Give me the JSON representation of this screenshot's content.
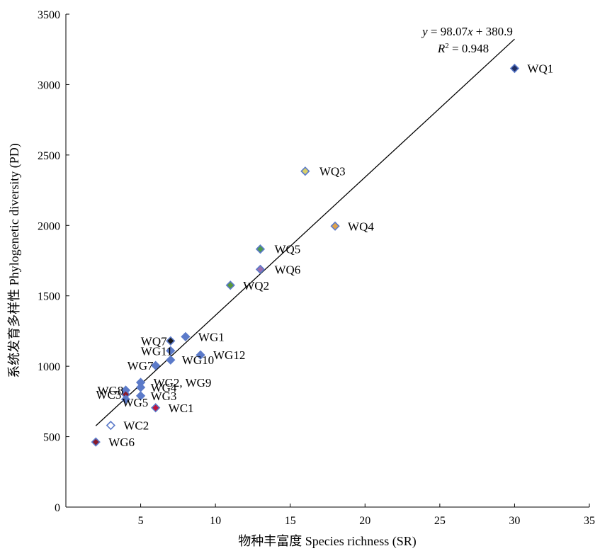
{
  "chart_data": {
    "type": "scatter",
    "xlabel": "物种丰富度 Species richness (SR)",
    "ylabel": "系统发育多样性 Phylogenetic diversity (PD)",
    "xlim": [
      0,
      35
    ],
    "ylim": [
      0,
      3500
    ],
    "xticks": [
      5,
      10,
      15,
      20,
      25,
      30,
      35
    ],
    "yticks": [
      0,
      500,
      1000,
      1500,
      2000,
      2500,
      3000,
      3500
    ],
    "grid": false,
    "regression": {
      "slope": 98.07,
      "intercept": 380.9,
      "r2": 0.948,
      "x_range": [
        2,
        30
      ],
      "equation_prefix": "y",
      "equation_rhs": " = 98.07",
      "equation_var": "x",
      "equation_tail": " + 380.9",
      "r2_symbol": "R",
      "r2_sup": "2",
      "r2_value": " = 0.948"
    },
    "points": [
      {
        "label": "WQ1",
        "x": 30,
        "y": 3115,
        "fill": "#1f2d63",
        "border": "#5b7ac9"
      },
      {
        "label": "WQ3",
        "x": 16,
        "y": 2385,
        "fill": "#d8cf69",
        "border": "#5b7ac9"
      },
      {
        "label": "WQ4",
        "x": 18,
        "y": 1995,
        "fill": "#e0a34a",
        "border": "#5b7ac9"
      },
      {
        "label": "WQ5",
        "x": 13,
        "y": 1832,
        "fill": "#4f9a4f",
        "border": "#5b7ac9"
      },
      {
        "label": "WQ6",
        "x": 13,
        "y": 1688,
        "fill": "#9a6fae",
        "border": "#5b7ac9"
      },
      {
        "label": "WQ2",
        "x": 11,
        "y": 1575,
        "fill": "#5a9a3a",
        "border": "#5b7ac9"
      },
      {
        "label": "WG1",
        "x": 8,
        "y": 1210,
        "fill": "#5b7ac9",
        "border": "#5b7ac9"
      },
      {
        "label": "WQ7",
        "x": 7,
        "y": 1180,
        "fill": "#1a1a1a",
        "border": "#5b7ac9"
      },
      {
        "label": "WG11",
        "x": 7,
        "y": 1110,
        "fill": "#5b7ac9",
        "border": "#5b7ac9"
      },
      {
        "label": "WG12",
        "x": 9,
        "y": 1080,
        "fill": "#5b7ac9",
        "border": "#5b7ac9"
      },
      {
        "label": "WG10",
        "x": 7,
        "y": 1045,
        "fill": "#5b7ac9",
        "border": "#5b7ac9"
      },
      {
        "label": "WG7",
        "x": 6,
        "y": 1005,
        "fill": "#5b7ac9",
        "border": "#5b7ac9"
      },
      {
        "label": "WG2, WG9",
        "x": 5,
        "y": 885,
        "fill": "#5b7ac9",
        "border": "#5b7ac9"
      },
      {
        "label": "WG8",
        "x": 4,
        "y": 830,
        "fill": "#5b7ac9",
        "border": "#5b7ac9"
      },
      {
        "label": "WG4",
        "x": 5,
        "y": 850,
        "fill": "#5b7ac9",
        "border": "#5b7ac9"
      },
      {
        "label": "WC3",
        "x": 4,
        "y": 800,
        "fill": "#8a1a2a",
        "border": "#5b7ac9"
      },
      {
        "label": "WG5",
        "x": 4,
        "y": 765,
        "fill": "#5b7ac9",
        "border": "#5b7ac9"
      },
      {
        "label": "WG3",
        "x": 5,
        "y": 790,
        "fill": "#5b7ac9",
        "border": "#5b7ac9"
      },
      {
        "label": "WC1",
        "x": 6,
        "y": 705,
        "fill": "#c0143c",
        "border": "#5b7ac9"
      },
      {
        "label": "WC2",
        "x": 3,
        "y": 580,
        "fill": "#ffffff",
        "border": "#5b7ac9"
      },
      {
        "label": "WG6",
        "x": 2,
        "y": 462,
        "fill": "#8a1a2a",
        "border": "#5b7ac9"
      }
    ]
  }
}
